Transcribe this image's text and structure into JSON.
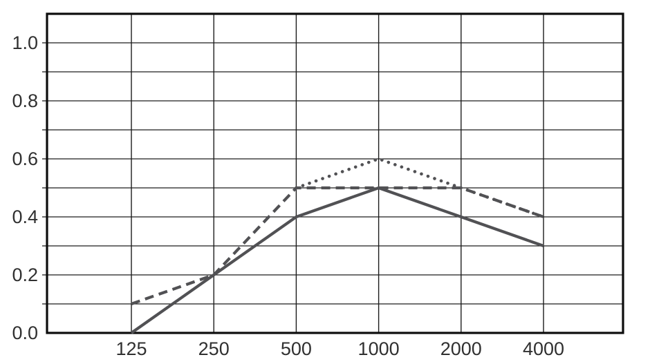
{
  "figure": {
    "background_color": "#ffffff",
    "grid_color": "#1c1c1c",
    "border_color": "#0d0d0d",
    "line_color": "#515154",
    "label_color": "#303030"
  },
  "chart_data": {
    "type": "line",
    "title": "",
    "xlabel": "",
    "ylabel": "",
    "x_scale": "log-octave",
    "categories": [
      125,
      250,
      500,
      1000,
      2000,
      4000
    ],
    "x_tick_labels": [
      "125",
      "250",
      "500",
      "1000",
      "2000",
      "4000"
    ],
    "y_ticks": [
      0.0,
      0.2,
      0.4,
      0.6,
      0.8,
      1.0
    ],
    "y_tick_labels": [
      "0.0",
      "0.2",
      "0.4",
      "0.6",
      "0.8",
      "1.0"
    ],
    "ylim": [
      0,
      1.1
    ],
    "y_gridline_step": 0.1,
    "grid": true,
    "legend_position": "none",
    "series": [
      {
        "name": "solid-line",
        "style": "solid",
        "values": [
          0.0,
          0.2,
          0.4,
          0.5,
          0.4,
          0.3
        ]
      },
      {
        "name": "dashed-line",
        "style": "dashed",
        "values": [
          0.1,
          0.2,
          0.5,
          0.5,
          0.5,
          0.4
        ]
      },
      {
        "name": "dotted-line",
        "style": "dotted",
        "values": [
          null,
          null,
          0.5,
          0.6,
          0.5,
          0.4
        ]
      }
    ]
  }
}
